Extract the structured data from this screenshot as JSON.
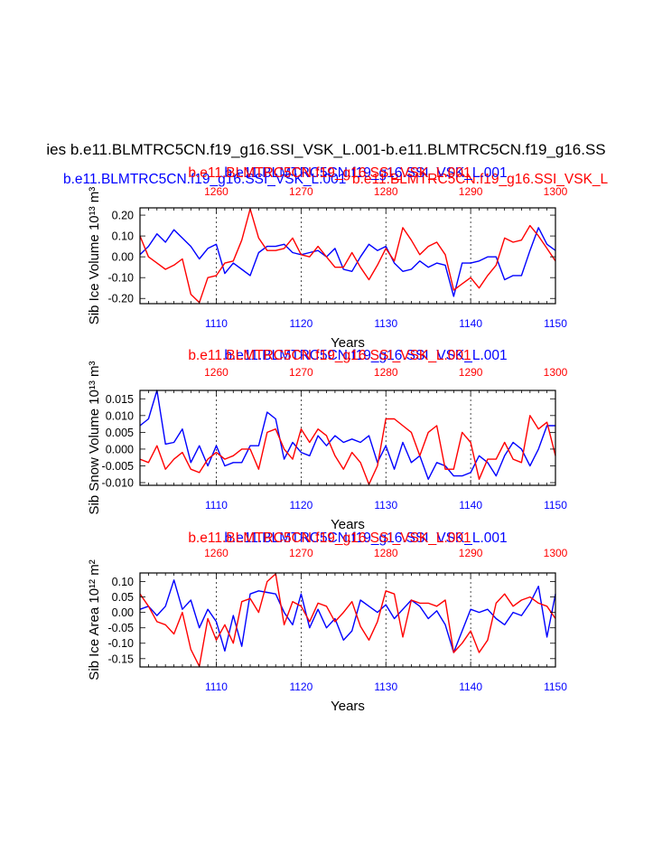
{
  "main_title": "ies b.e11.BLMTRC5CN.f19_g16.SSI_VSK_L.001-b.e11.BLMTRC5CN.f19_g16.SS",
  "colors": {
    "case_a": "#0000ff",
    "case_b": "#ff0000",
    "axis": "#000000"
  },
  "chart_data": [
    {
      "type": "line",
      "panel_top_label_left": "b.e11.BLMTRC5CN.f19_g16.SSI_VSK_L.001",
      "panel_top_label_right": "b.e11.BLMTRC5CN.f19_g16.SSI_VSK_L",
      "title_blue": "b.e11.BLMTRC5CN.f19_g16.SSI_VSK_L.001",
      "title_red": "b.e11.BLMTRC5CN.f19_g16.SSI_VSK_L.001",
      "xlabel": "Years",
      "ylabel": "Sib Ice Volume 10¹³ m³",
      "xlim": [
        1101,
        1150
      ],
      "ylim": [
        -0.225,
        0.235
      ],
      "x_bottom_ticks": [
        "1110",
        "1120",
        "1130",
        "1140",
        "1150"
      ],
      "x_top_ticks": [
        "1260",
        "1270",
        "1280",
        "1290",
        "1300"
      ],
      "y_ticks": [
        {
          "value": 0.2,
          "label": "0.20"
        },
        {
          "value": 0.1,
          "label": "0.10"
        },
        {
          "value": 0.0,
          "label": "0.00"
        },
        {
          "value": -0.1,
          "label": "-0.10"
        },
        {
          "value": -0.2,
          "label": "-0.20"
        }
      ],
      "series": [
        {
          "name": "b.e11.BLMTRC5CN.f19_g16.SSI_VSK_L.001",
          "color": "blue",
          "x": [
            1101,
            1102,
            1103,
            1104,
            1105,
            1106,
            1107,
            1108,
            1109,
            1110,
            1111,
            1112,
            1113,
            1114,
            1115,
            1116,
            1117,
            1118,
            1119,
            1120,
            1121,
            1122,
            1123,
            1124,
            1125,
            1126,
            1127,
            1128,
            1129,
            1130,
            1131,
            1132,
            1133,
            1134,
            1135,
            1136,
            1137,
            1138,
            1139,
            1140,
            1141,
            1142,
            1143,
            1144,
            1145,
            1146,
            1147,
            1148,
            1149,
            1150
          ],
          "values": [
            0.01,
            0.05,
            0.11,
            0.07,
            0.13,
            0.09,
            0.05,
            -0.01,
            0.04,
            0.06,
            -0.08,
            -0.03,
            -0.06,
            -0.09,
            0.02,
            0.05,
            0.05,
            0.06,
            0.02,
            0.01,
            0.02,
            0.03,
            0.0,
            0.04,
            -0.06,
            -0.07,
            0.0,
            0.06,
            0.03,
            0.05,
            -0.03,
            -0.07,
            -0.06,
            -0.02,
            -0.05,
            -0.03,
            -0.04,
            -0.19,
            -0.03,
            -0.03,
            -0.02,
            0.0,
            0.0,
            -0.11,
            -0.09,
            -0.09,
            0.03,
            0.14,
            0.06,
            0.03
          ]
        },
        {
          "name": "b.e11.BLMTRC5CN.f19_g16.SSI_VSK_L.001",
          "color": "red",
          "x": [
            1101,
            1102,
            1103,
            1104,
            1105,
            1106,
            1107,
            1108,
            1109,
            1110,
            1111,
            1112,
            1113,
            1114,
            1115,
            1116,
            1117,
            1118,
            1119,
            1120,
            1121,
            1122,
            1123,
            1124,
            1125,
            1126,
            1127,
            1128,
            1129,
            1130,
            1131,
            1132,
            1133,
            1134,
            1135,
            1136,
            1137,
            1138,
            1139,
            1140,
            1141,
            1142,
            1143,
            1144,
            1145,
            1146,
            1147,
            1148,
            1149,
            1150
          ],
          "values": [
            0.1,
            0.0,
            -0.03,
            -0.06,
            -0.04,
            -0.01,
            -0.18,
            -0.22,
            -0.1,
            -0.09,
            -0.03,
            -0.02,
            0.08,
            0.23,
            0.09,
            0.03,
            0.03,
            0.04,
            0.09,
            0.01,
            0.0,
            0.05,
            0.0,
            -0.05,
            -0.05,
            0.02,
            -0.05,
            -0.11,
            -0.04,
            0.04,
            -0.02,
            0.14,
            0.08,
            0.01,
            0.05,
            0.07,
            0.01,
            -0.16,
            -0.13,
            -0.1,
            -0.15,
            -0.09,
            -0.04,
            0.09,
            0.07,
            0.08,
            0.15,
            0.1,
            0.04,
            -0.02
          ]
        }
      ]
    },
    {
      "type": "line",
      "title_blue": "b.e11.BLMTRC5CN.f19_g16.SSI_VSK_L.001",
      "title_red": "b.e11.BLMTRC5CN.f19_g16.SSI_VSK_L.001",
      "xlabel": "Years",
      "ylabel": "Sib Snow Volume 10¹³ m³",
      "xlim": [
        1101,
        1150
      ],
      "ylim": [
        -0.0108,
        0.0175
      ],
      "x_bottom_ticks": [
        "1110",
        "1120",
        "1130",
        "1140",
        "1150"
      ],
      "x_top_ticks": [
        "1260",
        "1270",
        "1280",
        "1290",
        "1300"
      ],
      "y_ticks": [
        {
          "value": 0.015,
          "label": "0.015"
        },
        {
          "value": 0.01,
          "label": "0.010"
        },
        {
          "value": 0.005,
          "label": "0.005"
        },
        {
          "value": 0.0,
          "label": "0.000"
        },
        {
          "value": -0.005,
          "label": "-0.005"
        },
        {
          "value": -0.01,
          "label": "-0.010"
        }
      ],
      "series": [
        {
          "name": "b.e11.BLMTRC5CN.f19_g16.SSI_VSK_L.001",
          "color": "blue",
          "x": [
            1101,
            1102,
            1103,
            1104,
            1105,
            1106,
            1107,
            1108,
            1109,
            1110,
            1111,
            1112,
            1113,
            1114,
            1115,
            1116,
            1117,
            1118,
            1119,
            1120,
            1121,
            1122,
            1123,
            1124,
            1125,
            1126,
            1127,
            1128,
            1129,
            1130,
            1131,
            1132,
            1133,
            1134,
            1135,
            1136,
            1137,
            1138,
            1139,
            1140,
            1141,
            1142,
            1143,
            1144,
            1145,
            1146,
            1147,
            1148,
            1149,
            1150
          ],
          "values": [
            0.007,
            0.009,
            0.0175,
            0.0015,
            0.002,
            0.006,
            -0.004,
            0.001,
            -0.005,
            0.001,
            -0.005,
            -0.004,
            -0.004,
            0.001,
            0.001,
            0.011,
            0.009,
            -0.003,
            0.002,
            -0.001,
            -0.002,
            0.004,
            0.001,
            0.004,
            0.002,
            0.003,
            0.002,
            0.004,
            -0.004,
            0.001,
            -0.006,
            0.002,
            -0.004,
            -0.002,
            -0.009,
            -0.004,
            -0.005,
            -0.008,
            -0.008,
            -0.007,
            -0.002,
            -0.004,
            -0.008,
            -0.002,
            0.002,
            0.0,
            -0.005,
            0.0,
            0.007,
            0.007
          ]
        },
        {
          "name": "b.e11.BLMTRC5CN.f19_g16.SSI_VSK_L.001",
          "color": "red",
          "x": [
            1101,
            1102,
            1103,
            1104,
            1105,
            1106,
            1107,
            1108,
            1109,
            1110,
            1111,
            1112,
            1113,
            1114,
            1115,
            1116,
            1117,
            1118,
            1119,
            1120,
            1121,
            1122,
            1123,
            1124,
            1125,
            1126,
            1127,
            1128,
            1129,
            1130,
            1131,
            1132,
            1133,
            1134,
            1135,
            1136,
            1137,
            1138,
            1139,
            1140,
            1141,
            1142,
            1143,
            1144,
            1145,
            1146,
            1147,
            1148,
            1149,
            1150
          ],
          "values": [
            -0.003,
            -0.004,
            0.001,
            -0.006,
            -0.003,
            -0.001,
            -0.006,
            -0.007,
            -0.003,
            -0.001,
            -0.003,
            -0.002,
            0.0,
            0.0,
            -0.006,
            0.005,
            0.006,
            0.0,
            -0.003,
            0.006,
            0.002,
            0.006,
            0.004,
            -0.002,
            -0.006,
            -0.001,
            -0.004,
            -0.0105,
            -0.005,
            0.009,
            0.009,
            0.007,
            0.005,
            -0.002,
            0.005,
            0.007,
            -0.006,
            -0.006,
            0.005,
            0.002,
            -0.009,
            -0.003,
            -0.003,
            0.002,
            -0.003,
            -0.004,
            0.01,
            0.006,
            0.008,
            -0.002
          ]
        }
      ]
    },
    {
      "type": "line",
      "title_blue": "b.e11.BLMTRC5CN.f19_g16.SSI_VSK_L.001",
      "title_red": "b.e11.BLMTRC5CN.f19_g16.SSI_VSK_L.001",
      "xlabel": "Years",
      "ylabel": "Sib Ice Area 10¹² m²",
      "xlim": [
        1101,
        1150
      ],
      "ylim": [
        -0.177,
        0.128
      ],
      "x_bottom_ticks": [
        "1110",
        "1120",
        "1130",
        "1140",
        "1150"
      ],
      "x_top_ticks": [
        "1260",
        "1270",
        "1280",
        "1290",
        "1300"
      ],
      "y_ticks": [
        {
          "value": 0.1,
          "label": "0.10"
        },
        {
          "value": 0.05,
          "label": "0.05"
        },
        {
          "value": 0.0,
          "label": "0.00"
        },
        {
          "value": -0.05,
          "label": "-0.05"
        },
        {
          "value": -0.1,
          "label": "-0.10"
        },
        {
          "value": -0.15,
          "label": "-0.15"
        }
      ],
      "series": [
        {
          "name": "b.e11.BLMTRC5CN.f19_g16.SSI_VSK_L.001",
          "color": "blue",
          "x": [
            1101,
            1102,
            1103,
            1104,
            1105,
            1106,
            1107,
            1108,
            1109,
            1110,
            1111,
            1112,
            1113,
            1114,
            1115,
            1116,
            1117,
            1118,
            1119,
            1120,
            1121,
            1122,
            1123,
            1124,
            1125,
            1126,
            1127,
            1128,
            1129,
            1130,
            1131,
            1132,
            1133,
            1134,
            1135,
            1136,
            1137,
            1138,
            1139,
            1140,
            1141,
            1142,
            1143,
            1144,
            1145,
            1146,
            1147,
            1148,
            1149,
            1150
          ],
          "values": [
            0.01,
            0.02,
            -0.01,
            0.02,
            0.105,
            0.01,
            0.04,
            -0.05,
            0.01,
            -0.03,
            -0.125,
            -0.01,
            -0.11,
            0.06,
            0.07,
            0.065,
            0.06,
            0.0,
            -0.04,
            0.06,
            -0.05,
            0.01,
            -0.05,
            -0.02,
            -0.09,
            -0.06,
            0.04,
            0.02,
            0.0,
            0.025,
            -0.02,
            0.01,
            0.04,
            0.02,
            -0.02,
            0.005,
            -0.04,
            -0.13,
            -0.06,
            0.01,
            0.0,
            0.01,
            -0.02,
            -0.04,
            0.0,
            -0.01,
            0.03,
            0.085,
            -0.08,
            0.06
          ]
        },
        {
          "name": "b.e11.BLMTRC5CN.f19_g16.SSI_VSK_L.001",
          "color": "red",
          "x": [
            1101,
            1102,
            1103,
            1104,
            1105,
            1106,
            1107,
            1108,
            1109,
            1110,
            1111,
            1112,
            1113,
            1114,
            1115,
            1116,
            1117,
            1118,
            1119,
            1120,
            1121,
            1122,
            1123,
            1124,
            1125,
            1126,
            1127,
            1128,
            1129,
            1130,
            1131,
            1132,
            1133,
            1134,
            1135,
            1136,
            1137,
            1138,
            1139,
            1140,
            1141,
            1142,
            1143,
            1144,
            1145,
            1146,
            1147,
            1148,
            1149,
            1150
          ],
          "values": [
            0.06,
            0.02,
            -0.03,
            -0.04,
            -0.07,
            0.0,
            -0.12,
            -0.175,
            -0.02,
            -0.09,
            -0.04,
            -0.1,
            0.035,
            0.045,
            0.0,
            0.1,
            0.125,
            -0.04,
            0.035,
            0.02,
            -0.03,
            0.03,
            0.02,
            -0.03,
            0.0,
            0.035,
            -0.045,
            -0.09,
            -0.03,
            0.07,
            0.06,
            -0.08,
            0.04,
            0.03,
            0.03,
            0.02,
            0.04,
            -0.13,
            -0.1,
            -0.06,
            -0.13,
            -0.09,
            0.03,
            0.06,
            0.02,
            0.04,
            0.05,
            0.03,
            0.02,
            -0.02
          ]
        }
      ]
    }
  ]
}
